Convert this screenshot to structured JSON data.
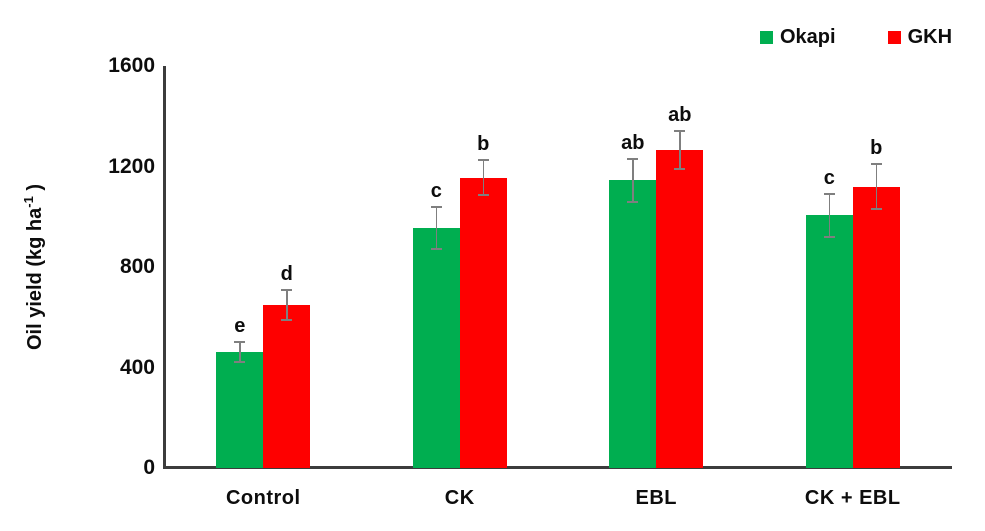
{
  "figure": {
    "background": "#ffffff"
  },
  "legend": {
    "items": [
      {
        "label": "Okapi",
        "color": "#00AE50",
        "icon": "green-square-swatch"
      },
      {
        "label": "GKH",
        "color": "#FE0000",
        "icon": "red-square-swatch"
      }
    ]
  },
  "y_axis": {
    "title_main": "Oil yield (kg ha",
    "title_sup": "-1",
    "title_close": " )"
  },
  "chart_data": {
    "type": "bar",
    "title": "",
    "xlabel": "",
    "ylabel": "Oil yield (kg ha -1)",
    "ylim": [
      0,
      1600
    ],
    "yticks": [
      0,
      400,
      800,
      1200,
      1600
    ],
    "grid": false,
    "legend_position": "top-right",
    "axis_color": "#3c3c3c",
    "error_bar_color": "#7f7f7f",
    "categories": [
      "Control",
      "CK",
      "EBL",
      "CK + EBL"
    ],
    "series": [
      {
        "name": "Okapi",
        "color": "#00AE50",
        "values": [
          460,
          955,
          1145,
          1005
        ],
        "errors": [
          40,
          85,
          85,
          85
        ],
        "letters": [
          "e",
          "c",
          "ab",
          "c"
        ]
      },
      {
        "name": "GKH",
        "color": "#FE0000",
        "values": [
          650,
          1155,
          1265,
          1120
        ],
        "errors": [
          60,
          70,
          75,
          90
        ],
        "letters": [
          "d",
          "b",
          "ab",
          "b"
        ]
      }
    ]
  }
}
